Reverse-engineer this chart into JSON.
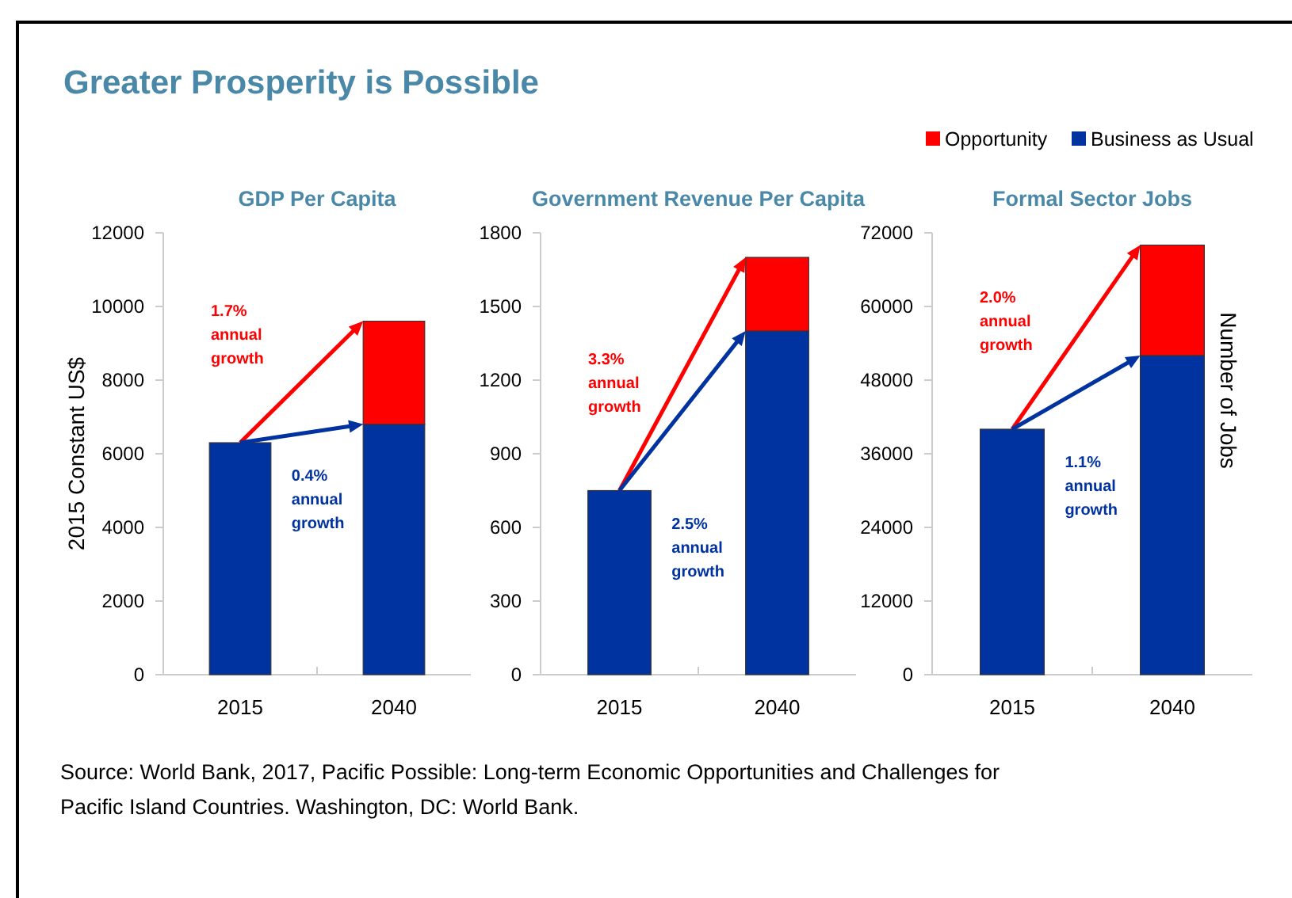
{
  "chart_data": [
    {
      "type": "bar",
      "title": "GDP Per Capita",
      "ylabel": "2015 Constant US$",
      "categories": [
        "2015",
        "2040"
      ],
      "stacked": true,
      "series": [
        {
          "color": "#0033a0",
          "values": [
            6300,
            6800
          ]
        },
        {
          "color": "#ff0000",
          "values": [
            null,
            2800
          ]
        }
      ],
      "ylim": [
        0,
        12000
      ],
      "yticks": [
        0,
        2000,
        4000,
        6000,
        8000,
        10000,
        12000
      ],
      "grid": false,
      "legend": false,
      "annotations": [
        "Greater Prosperity is Possible",
        "Source: World Bank, 2017, Pacific Possible: Long-term Economic Opportunities and Challenges for Pacific Island Countries. Washington, DC: World Bank.",
        "1.7% annual growth",
        "0.4% annual growth"
      ]
    },
    {
      "type": "bar",
      "title": "Government Revenue Per Capita",
      "categories": [
        "2015",
        "2040"
      ],
      "stacked": true,
      "series": [
        {
          "color": "#0033a0",
          "values": [
            750,
            1400
          ]
        },
        {
          "color": "#ff0000",
          "values": [
            null,
            300
          ]
        }
      ],
      "ylim": [
        0,
        1800
      ],
      "yticks": [
        0,
        300,
        600,
        900,
        1200,
        1500,
        1800
      ],
      "grid": false,
      "legend": false,
      "annotations": [
        "3.3% annual growth",
        "2.5% annual growth"
      ]
    },
    {
      "type": "bar",
      "title": "Formal Sector Jobs",
      "ylabel": "Number of Jobs",
      "categories": [
        "2015",
        "2040"
      ],
      "stacked": true,
      "series": [
        {
          "name": "Business as Usual",
          "color": "#0033a0",
          "values": [
            40000,
            52000
          ]
        },
        {
          "name": "Opportunity",
          "color": "#ff0000",
          "values": [
            null,
            18000
          ]
        }
      ],
      "ylim": [
        0,
        72000
      ],
      "yticks": [
        0,
        12000,
        24000,
        36000,
        48000,
        60000,
        72000
      ],
      "grid": false,
      "legend": "top",
      "annotations": [
        "2.0% annual growth",
        "1.1% annual growth"
      ]
    }
  ]
}
